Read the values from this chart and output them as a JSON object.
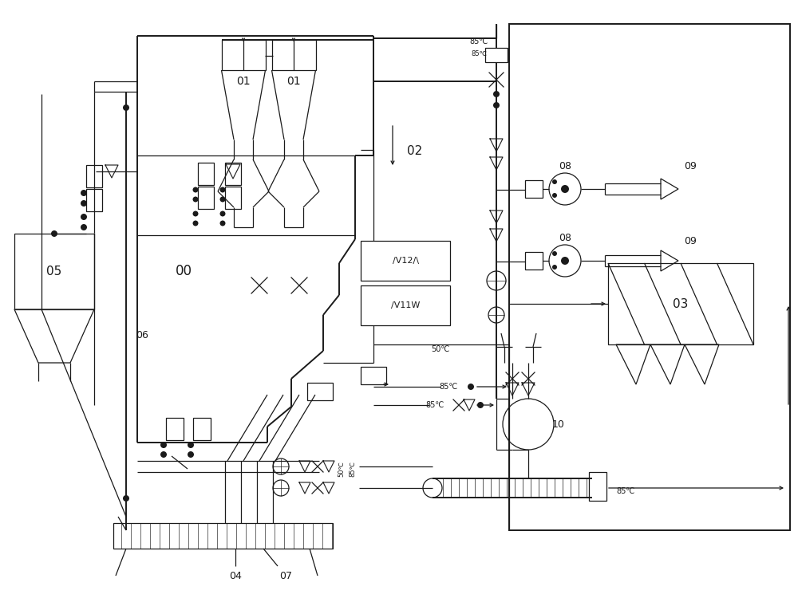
{
  "bg": "#ffffff",
  "lc": "#1a1a1a",
  "lw": 0.9,
  "lw2": 1.4,
  "figsize": [
    10.0,
    7.6
  ],
  "dpi": 100,
  "xlim": [
    0,
    10
  ],
  "ylim": [
    0,
    7.6
  ]
}
